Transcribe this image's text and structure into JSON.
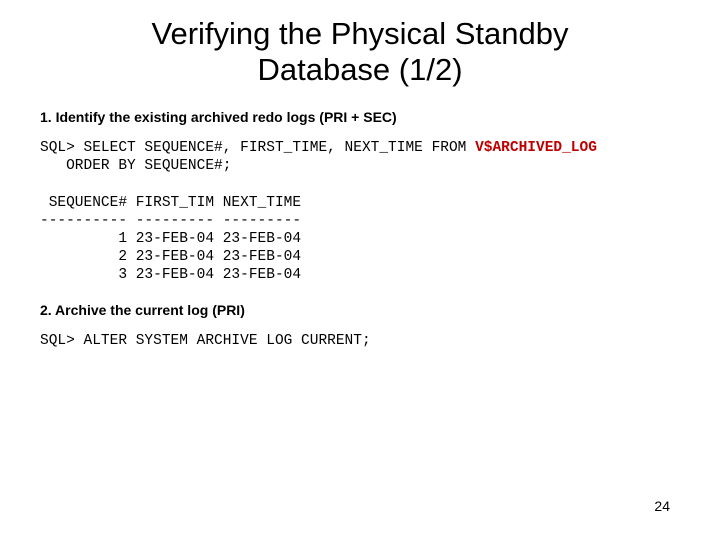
{
  "title_line1": "Verifying the Physical Standby",
  "title_line2": "Database (1/2)",
  "step1": "1. Identify the existing archived redo logs (PRI + SEC)",
  "sql1_prefix": "SQL> SELECT SEQUENCE#, FIRST_TIME, NEXT_TIME FROM ",
  "sql1_hl": "V$ARCHIVED_LOG",
  "sql1_line2": "   ORDER BY SEQUENCE#;",
  "result_header": " SEQUENCE# FIRST_TIM NEXT_TIME",
  "result_divider": "---------- --------- ---------",
  "result_row1": "         1 23-FEB-04 23-FEB-04",
  "result_row2": "         2 23-FEB-04 23-FEB-04",
  "result_row3": "         3 23-FEB-04 23-FEB-04",
  "step2": "2. Archive the current log (PRI)",
  "sql2": "SQL> ALTER SYSTEM ARCHIVE LOG CURRENT;",
  "page_number": "24",
  "colors": {
    "text": "#000000",
    "highlight": "#c00000",
    "background": "#ffffff"
  },
  "fonts": {
    "title_family": "Arial",
    "title_size_pt": 24,
    "body_family": "Arial",
    "body_size_pt": 11,
    "code_family": "Courier New",
    "code_size_pt": 11
  }
}
